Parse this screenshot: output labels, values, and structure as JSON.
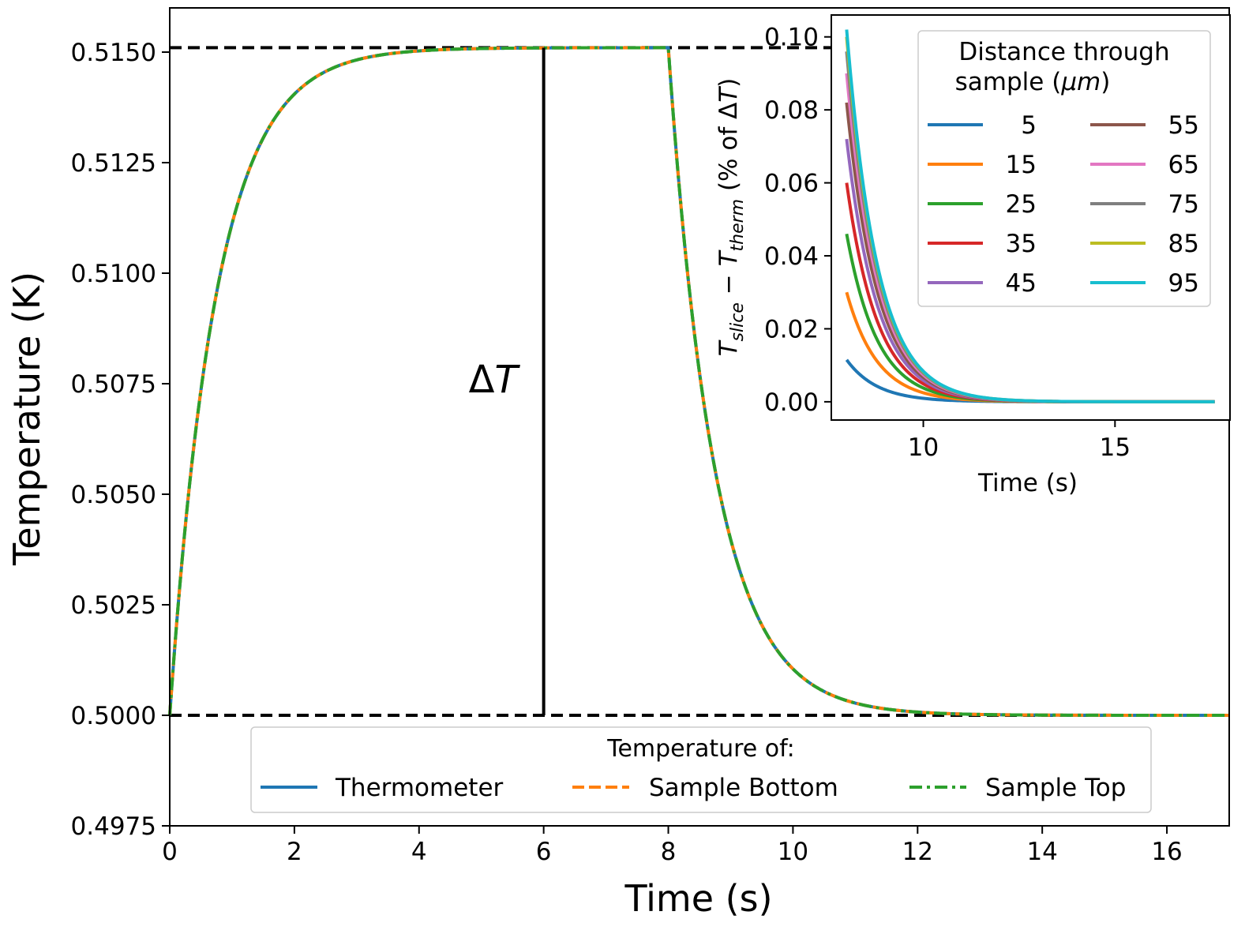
{
  "chart_data": [
    {
      "type": "line",
      "xlabel": "Time (s)",
      "ylabel": "Temperature (K)",
      "xlim": [
        0,
        17
      ],
      "ylim": [
        0.4975,
        0.516
      ],
      "xticks": [
        0,
        2,
        4,
        6,
        8,
        10,
        12,
        14,
        16
      ],
      "xtick_labels": [
        "0",
        "2",
        "4",
        "6",
        "8",
        "10",
        "12",
        "14",
        "16"
      ],
      "yticks": [
        0.4975,
        0.5,
        0.5025,
        0.505,
        0.5075,
        0.51,
        0.5125,
        0.515
      ],
      "ytick_labels": [
        "0.4975",
        "0.5000",
        "0.5025",
        "0.5050",
        "0.5075",
        "0.5100",
        "0.5125",
        "0.5150"
      ],
      "model": {
        "T0": 0.5,
        "dT": 0.0151,
        "tau": 0.75,
        "t_on": 0,
        "t_off": 8,
        "t_end": 17
      },
      "reference_lines": [
        {
          "name": "upper-reference",
          "y": 0.5151,
          "style": "dashed",
          "color": "#000000"
        },
        {
          "name": "lower-reference",
          "y": 0.5,
          "style": "dashed",
          "color": "#000000"
        }
      ],
      "annotation": {
        "x": 6,
        "y_from": 0.5,
        "y_to": 0.5151,
        "label_main": "Δ",
        "label_italic": "T"
      },
      "legend": {
        "title": "Temperature of:",
        "position": "bottom-center",
        "entries": [
          {
            "label": "Thermometer",
            "color": "#1f77b4",
            "style": "solid"
          },
          {
            "label": "Sample Bottom",
            "color": "#ff7f0e",
            "style": "dashed"
          },
          {
            "label": "Sample Top",
            "color": "#2ca02c",
            "style": "dashdot"
          }
        ]
      },
      "series": [
        {
          "name": "Thermometer",
          "color": "#1f77b4",
          "style": "solid",
          "key_points": [
            [
              0,
              0.5
            ],
            [
              2,
              0.51365
            ],
            [
              4,
              0.51503
            ],
            [
              8,
              0.5151
            ],
            [
              10,
              0.50144
            ],
            [
              12,
              0.50011
            ],
            [
              17,
              0.5
            ]
          ]
        },
        {
          "name": "Sample Bottom",
          "color": "#ff7f0e",
          "style": "dashed",
          "key_points": [
            [
              0,
              0.5
            ],
            [
              2,
              0.51365
            ],
            [
              4,
              0.51503
            ],
            [
              8,
              0.5151
            ],
            [
              10,
              0.50144
            ],
            [
              12,
              0.50011
            ],
            [
              17,
              0.5
            ]
          ]
        },
        {
          "name": "Sample Top",
          "color": "#2ca02c",
          "style": "dashdot",
          "key_points": [
            [
              0,
              0.5
            ],
            [
              2,
              0.51365
            ],
            [
              4,
              0.51503
            ],
            [
              8,
              0.5151
            ],
            [
              10,
              0.50144
            ],
            [
              12,
              0.50011
            ],
            [
              17,
              0.5
            ]
          ]
        }
      ]
    },
    {
      "type": "line",
      "inset": true,
      "xlabel": "Time (s)",
      "ylabel_parts": {
        "main": "T",
        "sub1": "slice",
        "minus": " − ",
        "sub2": "therm",
        "tail": " (% of Δ",
        "tail_italic": "T",
        "close": ")"
      },
      "xlim": [
        7.6,
        18.0
      ],
      "ylim": [
        -0.005,
        0.106
      ],
      "xticks": [
        10,
        15
      ],
      "xtick_labels": [
        "10",
        "15"
      ],
      "yticks": [
        0,
        0.02,
        0.04,
        0.06,
        0.08,
        0.1
      ],
      "ytick_labels": [
        "0.00",
        "0.02",
        "0.04",
        "0.06",
        "0.08",
        "0.10"
      ],
      "x_start": 8,
      "x_end": 17.6,
      "decay_tau": 0.8,
      "legend": {
        "title_line1": "Distance through",
        "title_line2_prefix": "sample (",
        "title_line2_italic": "μm",
        "title_line2_suffix": ")",
        "position": "top-right",
        "columns": 2
      },
      "series": [
        {
          "name": "5",
          "color": "#1f77b4",
          "initial": 0.0115
        },
        {
          "name": "15",
          "color": "#ff7f0e",
          "initial": 0.03
        },
        {
          "name": "25",
          "color": "#2ca02c",
          "initial": 0.046
        },
        {
          "name": "35",
          "color": "#d62728",
          "initial": 0.06
        },
        {
          "name": "45",
          "color": "#9467bd",
          "initial": 0.072
        },
        {
          "name": "55",
          "color": "#8c564b",
          "initial": 0.082
        },
        {
          "name": "65",
          "color": "#e377c2",
          "initial": 0.09
        },
        {
          "name": "75",
          "color": "#7f7f7f",
          "initial": 0.096
        },
        {
          "name": "85",
          "color": "#bcbd22",
          "initial": 0.1
        },
        {
          "name": "95",
          "color": "#17becf",
          "initial": 0.102
        }
      ]
    }
  ]
}
